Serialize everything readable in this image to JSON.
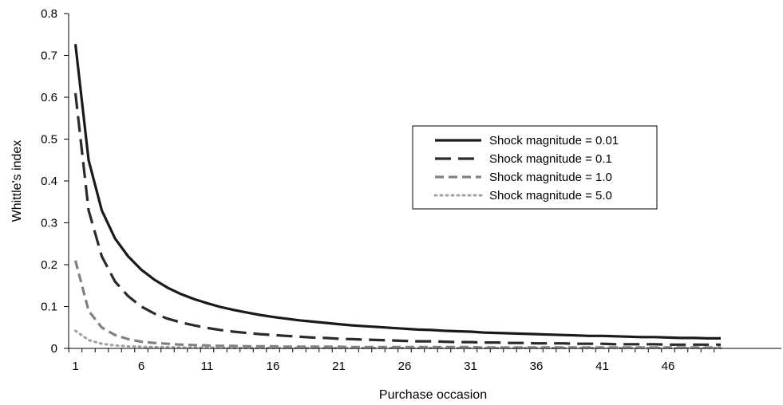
{
  "chart_data": {
    "type": "line",
    "xlabel": "Purchase occasion",
    "ylabel": "Whittle's index",
    "xlim": [
      1,
      50
    ],
    "ylim": [
      0,
      0.8
    ],
    "x_ticks": [
      1,
      6,
      11,
      16,
      21,
      26,
      31,
      36,
      41,
      46
    ],
    "y_ticks": [
      0,
      0.1,
      0.2,
      0.3,
      0.4,
      0.5,
      0.6,
      0.7,
      0.8
    ],
    "y_tick_labels": [
      "0",
      "0.1",
      "0.2",
      "0.3",
      "0.4",
      "0.5",
      "0.6",
      "0.7",
      "0.8"
    ],
    "grid": false,
    "legend_position": "right",
    "x": [
      1,
      2,
      3,
      4,
      5,
      6,
      7,
      8,
      9,
      10,
      11,
      12,
      13,
      14,
      15,
      16,
      17,
      18,
      19,
      20,
      21,
      22,
      23,
      24,
      25,
      26,
      27,
      28,
      29,
      30,
      31,
      32,
      33,
      34,
      35,
      36,
      37,
      38,
      39,
      40,
      41,
      42,
      43,
      44,
      45,
      46,
      47,
      48,
      49,
      50
    ],
    "series": [
      {
        "name": "Shock magnitude = 0.01",
        "style": "solid",
        "color": "#1a1a1a",
        "values": [
          0.727,
          0.45,
          0.33,
          0.263,
          0.22,
          0.188,
          0.164,
          0.145,
          0.13,
          0.118,
          0.108,
          0.099,
          0.092,
          0.086,
          0.08,
          0.075,
          0.071,
          0.067,
          0.064,
          0.061,
          0.058,
          0.055,
          0.053,
          0.051,
          0.049,
          0.047,
          0.045,
          0.044,
          0.042,
          0.041,
          0.04,
          0.038,
          0.037,
          0.036,
          0.035,
          0.034,
          0.033,
          0.032,
          0.031,
          0.03,
          0.03,
          0.029,
          0.028,
          0.027,
          0.027,
          0.026,
          0.025,
          0.025,
          0.024,
          0.024
        ]
      },
      {
        "name": "Shock magnitude = 0.1",
        "style": "long-dash",
        "color": "#2a2a2a",
        "values": [
          0.61,
          0.33,
          0.22,
          0.16,
          0.125,
          0.1,
          0.083,
          0.071,
          0.062,
          0.055,
          0.049,
          0.044,
          0.04,
          0.037,
          0.034,
          0.032,
          0.03,
          0.028,
          0.026,
          0.025,
          0.023,
          0.022,
          0.021,
          0.02,
          0.019,
          0.018,
          0.017,
          0.017,
          0.016,
          0.015,
          0.015,
          0.014,
          0.014,
          0.013,
          0.013,
          0.012,
          0.012,
          0.012,
          0.011,
          0.011,
          0.011,
          0.01,
          0.01,
          0.01,
          0.01,
          0.009,
          0.009,
          0.009,
          0.009,
          0.009
        ]
      },
      {
        "name": "Shock magnitude = 1.0",
        "style": "dash",
        "color": "#808080",
        "values": [
          0.21,
          0.09,
          0.05,
          0.032,
          0.022,
          0.016,
          0.013,
          0.011,
          0.009,
          0.008,
          0.007,
          0.006,
          0.006,
          0.005,
          0.005,
          0.005,
          0.004,
          0.004,
          0.004,
          0.004,
          0.004,
          0.003,
          0.003,
          0.003,
          0.003,
          0.003,
          0.003,
          0.003,
          0.003,
          0.003,
          0.003,
          0.002,
          0.002,
          0.002,
          0.002,
          0.002,
          0.002,
          0.002,
          0.002,
          0.002,
          0.002,
          0.002,
          0.002,
          0.002,
          0.002,
          0.002,
          0.002,
          0.002,
          0.002,
          0.002
        ]
      },
      {
        "name": "Shock magnitude = 5.0",
        "style": "dotted",
        "color": "#a0a0a0",
        "values": [
          0.042,
          0.02,
          0.011,
          0.007,
          0.005,
          0.004,
          0.003,
          0.003,
          0.002,
          0.002,
          0.002,
          0.002,
          0.001,
          0.001,
          0.001,
          0.001,
          0.001,
          0.001,
          0.001,
          0.001,
          0.001,
          0.001,
          0.001,
          0.001,
          0.001,
          0.001,
          0.001,
          0.001,
          0.001,
          0.001,
          0.001,
          0.001,
          0.001,
          0.001,
          0.001,
          0.001,
          0.001,
          0.001,
          0.001,
          0.001,
          0.001,
          0.001,
          0.001,
          0.001,
          0.001,
          0.001,
          0.001,
          0.001,
          0.001,
          0.001
        ]
      }
    ]
  }
}
